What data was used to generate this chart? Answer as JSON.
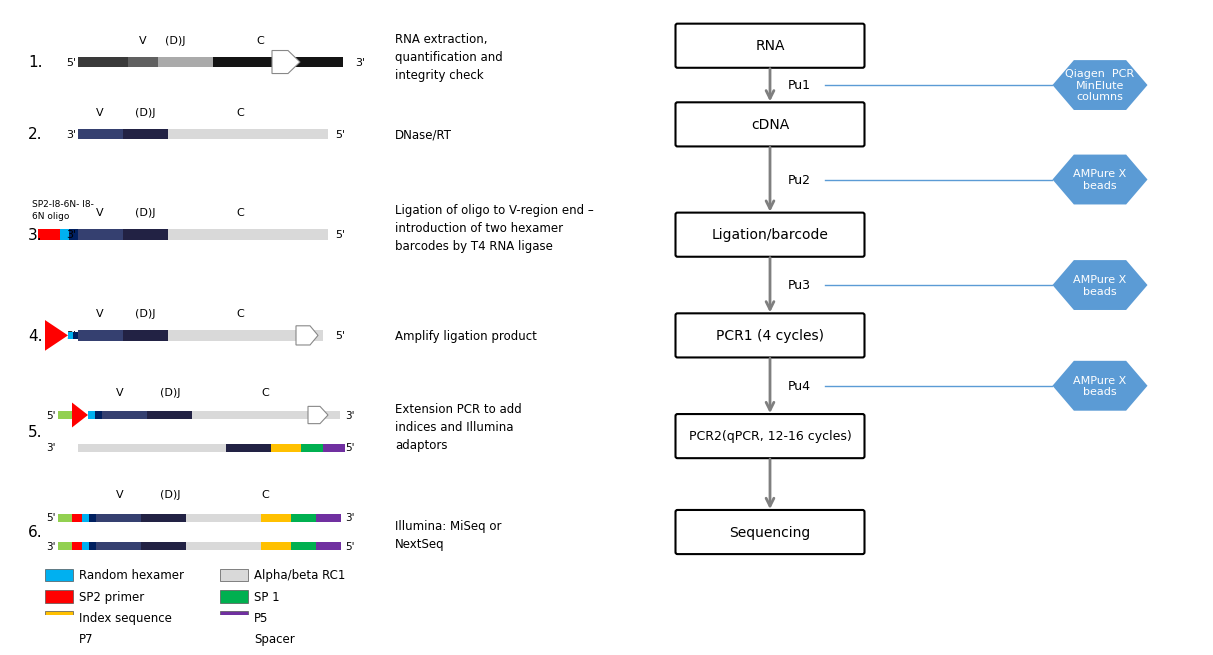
{
  "bg_color": "#ffffff",
  "arrow_color": "#7f7f7f",
  "hex_color": "#5b9bd5",
  "hex_text_color": "#ffffff",
  "flow_box_labels": [
    "RNA",
    "cDNA",
    "Ligation/barcode",
    "PCR1 (4 cycles)",
    "PCR2(qPCR, 12-16 cycles)",
    "Sequencing"
  ],
  "pu_labels": [
    "Pu1",
    "Pu2",
    "Pu3",
    "Pu4"
  ],
  "hex_labels": [
    "Qiagen  PCR\nMinElute\ncolumns",
    "AMPure X\nbeads",
    "AMPure X\nbeads",
    "AMPure X\nbeads"
  ],
  "step_numbers": [
    "1.",
    "2.",
    "3.",
    "4.",
    "5.",
    "6."
  ],
  "step_descriptions": [
    "RNA extraction,\nquantification and\nintegrity check",
    "DNase/RT",
    "Ligation of oligo to V-region end –\nintroduction of two hexamer\nbarcodes by T4 RNA ligase",
    "Amplify ligation product",
    "Extension PCR to add\nindices and Illumina\nadaptors",
    "Illumina: MiSeq or\nNextSeq"
  ],
  "legend_left": [
    {
      "color": "#00b0f0",
      "label": "Random hexamer"
    },
    {
      "color": "#ff0000",
      "label": "SP2 primer"
    },
    {
      "color": "#ffc000",
      "label": "Index sequence"
    },
    {
      "color": "#92d050",
      "label": "P7"
    }
  ],
  "legend_right": [
    {
      "color": "#d9d9d9",
      "label": "Alpha/beta RC1"
    },
    {
      "color": "#00b050",
      "label": "SP 1"
    },
    {
      "color": "#7030a0",
      "label": "P5"
    },
    {
      "color": "#002060",
      "label": "Spacer"
    }
  ],
  "c_black": "#1a1a1a",
  "c_vdark": "#2d2d2d",
  "c_vgray": "#606060",
  "c_silver": "#d9d9d9",
  "c_vdj": "#404040",
  "c_darkv": "#404060",
  "c_vblue": "#3b4f8f",
  "c_navyblue": "#1f3060",
  "c_cyan": "#00b0f0",
  "c_red": "#ff0000",
  "c_yellow": "#ffc000",
  "c_lgreen": "#92d050",
  "c_dgreen": "#00b050",
  "c_purple": "#7030a0",
  "c_dblue": "#002060"
}
